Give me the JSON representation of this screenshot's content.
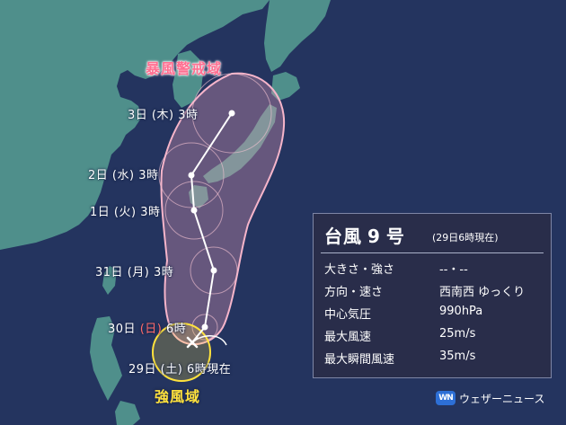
{
  "map": {
    "storm_zone_label": "暴風警戒域",
    "gale_zone_label": "強風域",
    "current_position_label": "29日 (土) 6時現在",
    "forecast_points": [
      {
        "day": "3日",
        "weekday": "(木)",
        "hour": "3時"
      },
      {
        "day": "2日",
        "weekday": "(水)",
        "hour": "3時"
      },
      {
        "day": "1日",
        "weekday": "(火)",
        "hour": "3時"
      },
      {
        "day": "31日",
        "weekday": "(月)",
        "hour": "3時"
      },
      {
        "day": "30日",
        "weekday": "(日)",
        "hour": "6時"
      }
    ]
  },
  "info": {
    "title_prefix": "台風",
    "title_number": "9",
    "title_suffix": "号",
    "as_of": "(29日6時現在)",
    "rows": [
      {
        "label": "大きさ・強さ",
        "value": "--・--"
      },
      {
        "label": "方向・速さ",
        "value": "西南西 ゆっくり"
      },
      {
        "label": "中心気圧",
        "value": "990hPa"
      },
      {
        "label": "最大風速",
        "value": "25m/s"
      },
      {
        "label": "最大瞬間風速",
        "value": "35m/s"
      }
    ]
  },
  "brand": {
    "mark": "WN",
    "name": "ウェザーニュース"
  },
  "colors": {
    "sea": "#24345f",
    "land": "#4f8f8b",
    "storm_zone": "#f3a3bd",
    "gale_zone": "#ffe23d",
    "sunday": "#ff6b6b"
  }
}
